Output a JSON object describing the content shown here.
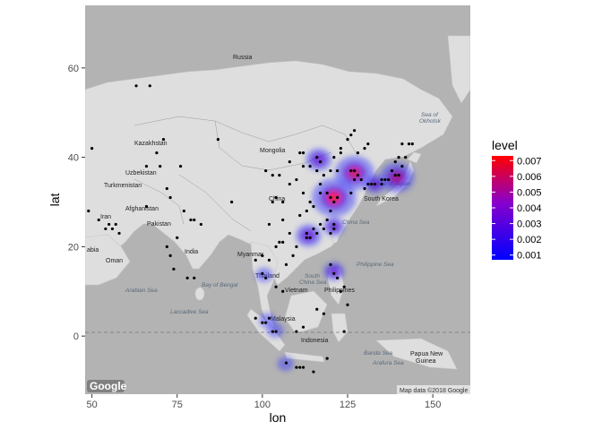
{
  "chart_data": {
    "type": "density-map",
    "xlabel": "lon",
    "ylabel": "lat",
    "xlim": [
      48,
      161
    ],
    "ylim": [
      -13,
      74
    ],
    "x_ticks": [
      50,
      75,
      100,
      125,
      150
    ],
    "y_ticks": [
      0,
      20,
      40,
      60
    ],
    "legend": {
      "title": "level",
      "position": "right",
      "values": [
        0.001,
        0.002,
        0.003,
        0.004,
        0.005,
        0.006,
        0.007
      ],
      "labels": [
        "0.001",
        "0.002",
        "0.003",
        "0.004",
        "0.005",
        "0.006",
        "0.007"
      ],
      "low_color": "#0000ff",
      "high_color": "#ff0000"
    },
    "density_hotspots": [
      {
        "lon": 121.0,
        "lat": 31.0,
        "level": 0.007
      },
      {
        "lon": 127.0,
        "lat": 36.5,
        "level": 0.006
      },
      {
        "lon": 139.5,
        "lat": 35.5,
        "level": 0.005
      },
      {
        "lon": 116.5,
        "lat": 39.5,
        "level": 0.003
      },
      {
        "lon": 113.5,
        "lat": 22.5,
        "level": 0.003
      },
      {
        "lon": 121.0,
        "lat": 24.5,
        "level": 0.002
      },
      {
        "lon": 121.0,
        "lat": 14.5,
        "level": 0.002
      },
      {
        "lon": 103.8,
        "lat": 1.3,
        "level": 0.001
      },
      {
        "lon": 101.5,
        "lat": 3.5,
        "level": 0.001
      },
      {
        "lon": 100.5,
        "lat": 13.7,
        "level": 0.001
      },
      {
        "lon": 106.8,
        "lat": -6.2,
        "level": 0.001
      },
      {
        "lon": 133.0,
        "lat": 34.0,
        "level": 0.002
      }
    ],
    "points": [
      [
        63,
        56
      ],
      [
        67,
        56
      ],
      [
        50,
        42
      ],
      [
        55,
        25
      ],
      [
        56,
        24
      ],
      [
        57,
        25
      ],
      [
        54,
        24
      ],
      [
        49,
        28
      ],
      [
        58,
        23
      ],
      [
        52,
        26
      ],
      [
        66,
        29
      ],
      [
        72,
        33
      ],
      [
        73,
        18
      ],
      [
        77,
        28
      ],
      [
        78,
        13
      ],
      [
        80,
        13
      ],
      [
        80,
        26
      ],
      [
        73,
        31
      ],
      [
        82,
        25
      ],
      [
        66,
        38
      ],
      [
        70,
        38
      ],
      [
        69,
        41
      ],
      [
        71,
        44
      ],
      [
        76,
        38
      ],
      [
        79,
        26
      ],
      [
        74,
        15
      ],
      [
        72,
        20
      ],
      [
        75,
        22
      ],
      [
        100,
        14
      ],
      [
        101,
        13
      ],
      [
        102,
        17
      ],
      [
        100,
        18
      ],
      [
        98,
        17
      ],
      [
        104,
        11
      ],
      [
        106,
        10
      ],
      [
        107,
        16
      ],
      [
        105,
        21
      ],
      [
        106,
        21
      ],
      [
        104,
        20
      ],
      [
        98,
        4
      ],
      [
        100,
        3
      ],
      [
        101,
        3
      ],
      [
        103,
        1
      ],
      [
        104,
        1
      ],
      [
        102,
        4
      ],
      [
        110,
        1
      ],
      [
        112,
        2
      ],
      [
        118,
        5
      ],
      [
        116,
        6
      ],
      [
        107,
        -6
      ],
      [
        110,
        -7
      ],
      [
        112,
        -7
      ],
      [
        115,
        -8
      ],
      [
        119,
        -5
      ],
      [
        124,
        1
      ],
      [
        125,
        7
      ],
      [
        121,
        14
      ],
      [
        122,
        13
      ],
      [
        123,
        10
      ],
      [
        120,
        16
      ],
      [
        124,
        11
      ],
      [
        111,
        -7
      ],
      [
        113,
        22
      ],
      [
        114,
        22
      ],
      [
        113,
        23
      ],
      [
        115,
        24
      ],
      [
        117,
        25
      ],
      [
        118,
        24
      ],
      [
        116,
        23
      ],
      [
        119,
        26
      ],
      [
        120,
        28
      ],
      [
        121,
        30
      ],
      [
        122,
        31
      ],
      [
        120,
        31
      ],
      [
        119,
        32
      ],
      [
        117,
        32
      ],
      [
        114,
        30
      ],
      [
        113,
        28
      ],
      [
        112,
        32
      ],
      [
        110,
        35
      ],
      [
        108,
        34
      ],
      [
        106,
        30
      ],
      [
        104,
        31
      ],
      [
        103,
        30
      ],
      [
        102,
        25
      ],
      [
        106,
        26
      ],
      [
        108,
        23
      ],
      [
        110,
        20
      ],
      [
        109,
        18
      ],
      [
        111,
        27
      ],
      [
        115,
        29
      ],
      [
        117,
        34
      ],
      [
        118,
        36
      ],
      [
        116,
        37
      ],
      [
        114,
        38
      ],
      [
        116,
        40
      ],
      [
        117,
        39
      ],
      [
        112,
        38
      ],
      [
        112,
        41
      ],
      [
        111,
        41
      ],
      [
        123,
        41
      ],
      [
        123,
        42
      ],
      [
        125,
        44
      ],
      [
        126,
        45
      ],
      [
        127,
        46
      ],
      [
        121,
        40
      ],
      [
        120,
        37
      ],
      [
        122,
        37
      ],
      [
        105,
        36
      ],
      [
        103,
        36
      ],
      [
        101,
        37
      ],
      [
        108,
        39
      ],
      [
        91,
        30
      ],
      [
        87,
        44
      ],
      [
        121,
        25
      ],
      [
        120,
        23
      ],
      [
        121,
        24
      ],
      [
        127,
        37
      ],
      [
        129,
        35
      ],
      [
        127,
        35
      ],
      [
        126,
        37
      ],
      [
        128,
        36
      ],
      [
        130,
        33
      ],
      [
        131,
        34
      ],
      [
        132,
        34
      ],
      [
        133,
        34
      ],
      [
        135,
        35
      ],
      [
        136,
        35
      ],
      [
        137,
        35
      ],
      [
        139,
        36
      ],
      [
        140,
        36
      ],
      [
        141,
        38
      ],
      [
        140,
        40
      ],
      [
        141,
        43
      ],
      [
        143,
        43
      ],
      [
        139,
        39
      ],
      [
        135,
        34
      ],
      [
        138,
        37
      ],
      [
        130,
        42
      ],
      [
        131,
        43
      ],
      [
        142,
        40
      ],
      [
        144,
        43
      ],
      [
        126,
        32
      ],
      [
        128,
        41
      ]
    ]
  }
}
